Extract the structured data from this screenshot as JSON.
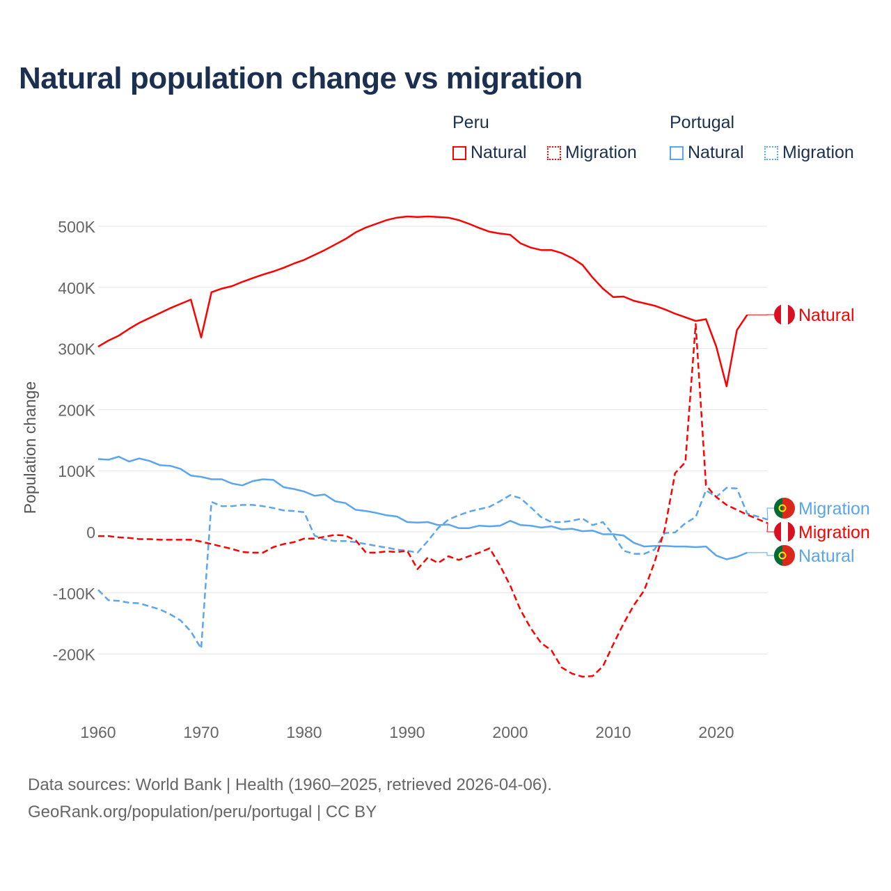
{
  "title": "Natural population change vs migration",
  "legend": {
    "groups": [
      {
        "name": "Peru",
        "items": [
          "Natural",
          "Migration"
        ]
      },
      {
        "name": "Portugal",
        "items": [
          "Natural",
          "Migration"
        ]
      }
    ]
  },
  "footer": {
    "line1": "Data sources: World Bank | Health (1960–2025, retrieved 2026-04-06).",
    "line2": "GeoRank.org/population/peru/portugal | CC BY"
  },
  "colors": {
    "peru": "#ff0000",
    "portugal": "#5aa5ec",
    "grid": "#e5e5e5",
    "axis_text": "#666666"
  },
  "chart_data": {
    "type": "line",
    "title": "Natural population change vs migration",
    "xlabel": "",
    "ylabel": "Population change",
    "xlim": [
      1960,
      2025
    ],
    "ylim": [
      -290000,
      540000
    ],
    "xticks": [
      1960,
      1970,
      1980,
      1990,
      2000,
      2010,
      2020
    ],
    "xtick_labels": [
      "1960",
      "1970",
      "1980",
      "1990",
      "2000",
      "2010",
      "2020"
    ],
    "yticks": [
      500000,
      400000,
      300000,
      200000,
      100000,
      0,
      -100000,
      -200000
    ],
    "ytick_labels": [
      "500K",
      "400K",
      "300K",
      "200K",
      "100K",
      "0",
      "-100K",
      "-200K"
    ],
    "grid": true,
    "legend_position": "top-right",
    "series": [
      {
        "name": "Peru Natural",
        "country": "Peru",
        "label": "Natural",
        "color": "#ff0000",
        "dash": false,
        "start": 1960,
        "values": [
          303,
          313,
          321,
          332,
          342,
          350,
          358,
          366,
          373,
          380,
          318,
          392,
          398,
          402,
          409,
          415,
          421,
          426,
          432,
          439,
          445,
          453,
          461,
          470,
          479,
          490,
          498,
          504,
          510,
          514,
          516,
          515,
          516,
          515,
          514,
          510,
          504,
          497,
          491,
          488,
          486,
          472,
          465,
          461,
          461,
          456,
          448,
          437,
          416,
          398,
          384,
          385,
          378,
          374,
          370,
          364,
          357,
          351,
          345,
          348,
          303,
          238,
          330,
          355
        ],
        "unit": "thousands"
      },
      {
        "name": "Peru Migration",
        "country": "Peru",
        "label": "Migration",
        "color": "#ff0000",
        "dash": true,
        "start": 1960,
        "values": [
          -7,
          -7,
          -9,
          -10,
          -12,
          -12,
          -13,
          -13,
          -13,
          -13,
          -16,
          -20,
          -24,
          -28,
          -33,
          -34,
          -34,
          -25,
          -20,
          -17,
          -11,
          -11,
          -8,
          -5,
          -6,
          -14,
          -34,
          -34,
          -32,
          -33,
          -31,
          -61,
          -42,
          -51,
          -40,
          -46,
          -40,
          -34,
          -27,
          -55,
          -88,
          -128,
          -158,
          -182,
          -194,
          -222,
          -232,
          -237,
          -236,
          -220,
          -184,
          -150,
          -120,
          -96,
          -50,
          4,
          96,
          114,
          340,
          76,
          57,
          44,
          36,
          28,
          21,
          14
        ],
        "unit": "thousands"
      },
      {
        "name": "Portugal Natural",
        "country": "Portugal",
        "label": "Natural",
        "color": "#5aa5ec",
        "dash": false,
        "start": 1960,
        "values": [
          119,
          118,
          123,
          115,
          120,
          116,
          109,
          108,
          103,
          92,
          90,
          86,
          86,
          79,
          76,
          83,
          86,
          85,
          73,
          70,
          66,
          59,
          61,
          50,
          47,
          36,
          34,
          31,
          27,
          25,
          16,
          15,
          16,
          11,
          12,
          6,
          6,
          10,
          9,
          10,
          18,
          11,
          10,
          7,
          9,
          4,
          5,
          1,
          2,
          -4,
          -4,
          -6,
          -18,
          -24,
          -23,
          -23,
          -24,
          -24,
          -25,
          -24,
          -39,
          -45,
          -41,
          -34
        ],
        "unit": "thousands"
      },
      {
        "name": "Portugal Migration",
        "country": "Portugal",
        "label": "Migration",
        "color": "#5aa5ec",
        "dash": true,
        "start": 1960,
        "values": [
          -95,
          -112,
          -113,
          -116,
          -117,
          -122,
          -127,
          -135,
          -145,
          -163,
          -191,
          49,
          42,
          42,
          44,
          44,
          42,
          39,
          35,
          34,
          32,
          -6,
          -13,
          -15,
          -15,
          -17,
          -20,
          -23,
          -26,
          -29,
          -31,
          -34,
          -15,
          6,
          20,
          27,
          33,
          37,
          41,
          50,
          60,
          55,
          40,
          24,
          16,
          16,
          18,
          22,
          11,
          16,
          -5,
          -31,
          -36,
          -36,
          -29,
          -2,
          -1,
          14,
          24,
          68,
          57,
          72,
          71,
          30,
          25,
          20
        ],
        "unit": "thousands"
      }
    ],
    "end_labels": [
      {
        "series": 0,
        "text": "Natural"
      },
      {
        "series": 3,
        "text": "Migration"
      },
      {
        "series": 1,
        "text": "Migration"
      },
      {
        "series": 2,
        "text": "Natural"
      }
    ]
  }
}
